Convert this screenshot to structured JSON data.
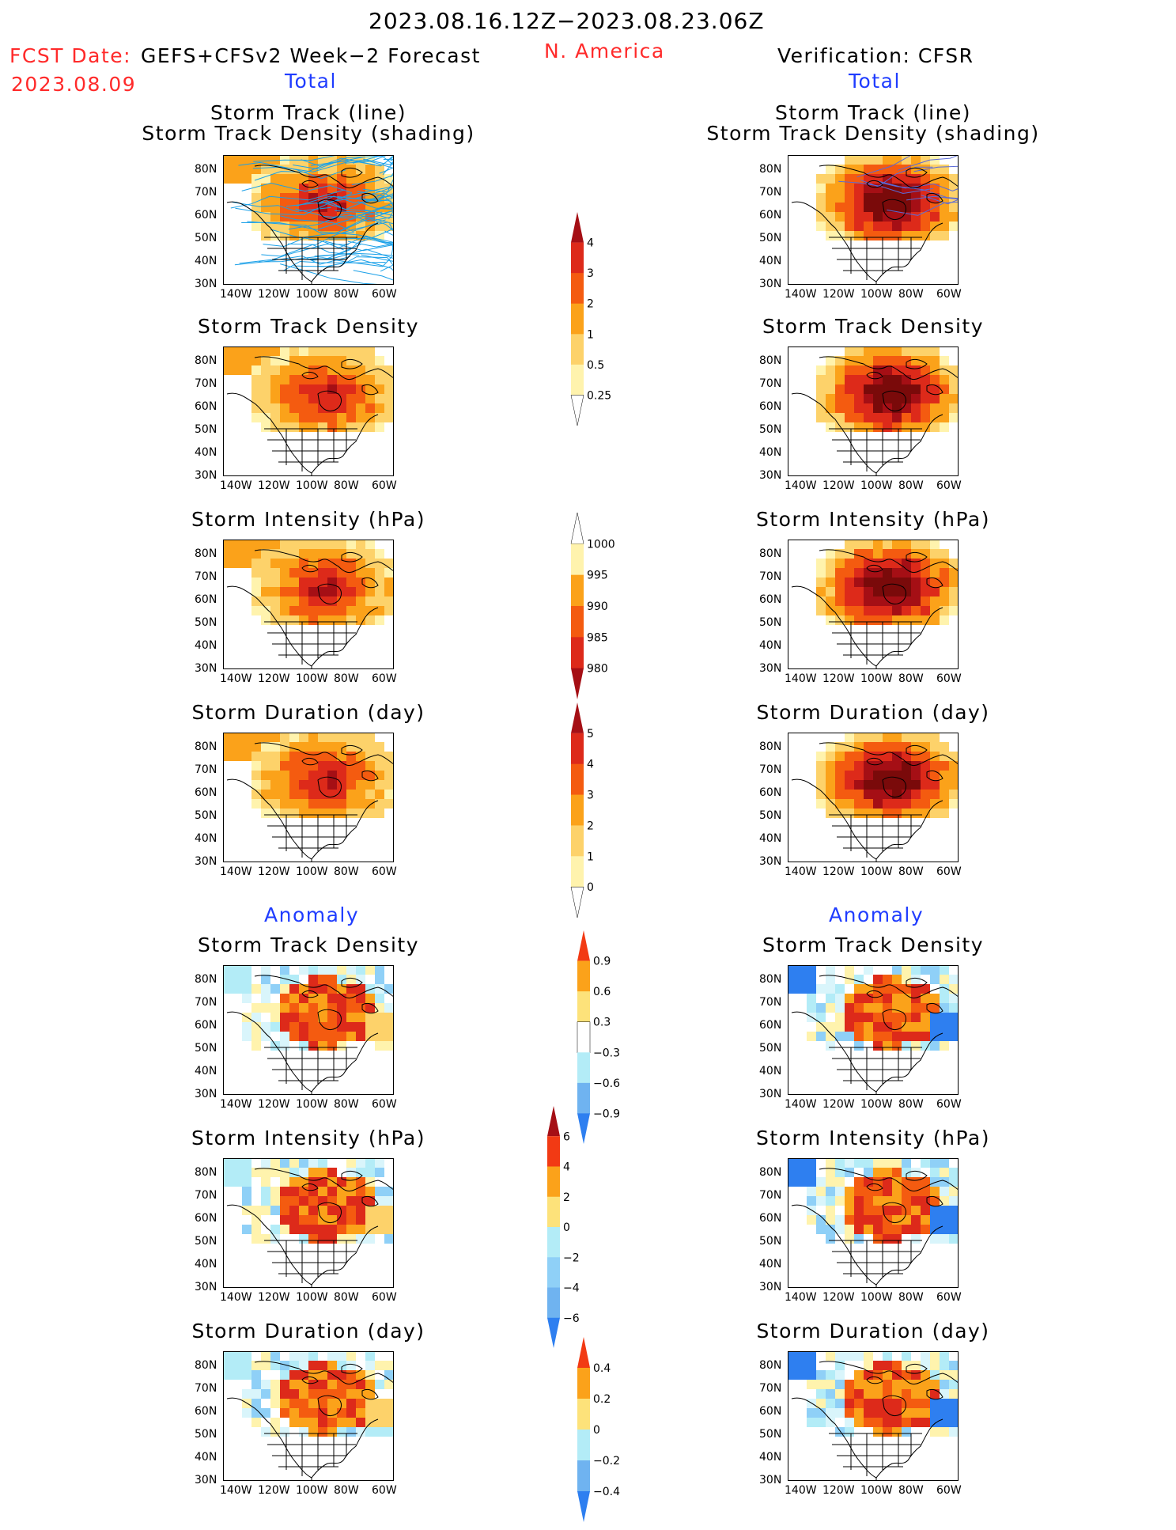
{
  "header": {
    "date_range": "2023.08.16.12Z−2023.08.23.06Z",
    "fcst_date_label": "FCST Date:",
    "fcst_date": "2023.08.09",
    "forecast_name": "GEFS+CFSv2 Week−2 Forecast",
    "region": "N. America",
    "verification": "Verification: CFSR",
    "left_total": "Total",
    "right_total": "Total",
    "left_anomaly": "Anomaly",
    "right_anomaly": "Anomaly"
  },
  "axes": {
    "lat_ticks": [
      "80N",
      "70N",
      "60N",
      "50N",
      "40N",
      "30N"
    ],
    "lon_ticks": [
      "140W",
      "120W",
      "100W",
      "80W",
      "60W"
    ]
  },
  "panels": {
    "left": [
      {
        "title1": "Storm Track (line)",
        "title2": "Storm Track Density (shading)"
      },
      {
        "title1": "Storm Track Density"
      },
      {
        "title1": "Storm Intensity (hPa)"
      },
      {
        "title1": "Storm Duration (day)"
      },
      {
        "title1": "Storm Track Density"
      },
      {
        "title1": "Storm Intensity (hPa)"
      },
      {
        "title1": "Storm Duration (day)"
      }
    ],
    "right": [
      {
        "title1": "Storm Track (line)",
        "title2": "Storm Track Density (shading)"
      },
      {
        "title1": "Storm Track Density"
      },
      {
        "title1": "Storm Intensity (hPa)"
      },
      {
        "title1": "Storm Duration (day)"
      },
      {
        "title1": "Storm Track Density"
      },
      {
        "title1": "Storm Intensity (hPa)"
      },
      {
        "title1": "Storm Duration (day)"
      }
    ]
  },
  "colorbars": [
    {
      "id": "density",
      "labels": [
        "4",
        "3",
        "2",
        "1",
        "0.5",
        "0.25"
      ],
      "colors": [
        "#a50f15",
        "#dd2a1a",
        "#f45b10",
        "#fba21a",
        "#fdd26a",
        "#fff3ad",
        "#ffffff"
      ]
    },
    {
      "id": "intensity",
      "labels": [
        "1000",
        "995",
        "990",
        "985",
        "980"
      ],
      "colors": [
        "#ffffff",
        "#fff3ad",
        "#fba21a",
        "#f45b10",
        "#dd2a1a",
        "#a50f15"
      ]
    },
    {
      "id": "duration",
      "labels": [
        "5",
        "4",
        "3",
        "2",
        "1",
        "0"
      ],
      "colors": [
        "#a50f15",
        "#dd2a1a",
        "#f45b10",
        "#fba21a",
        "#fdd26a",
        "#fff3ad",
        "#ffffff"
      ]
    },
    {
      "id": "anom-density",
      "labels": [
        "0.9",
        "0.6",
        "0.3",
        "−0.3",
        "−0.6",
        "−0.9"
      ],
      "colors": [
        "#f23a14",
        "#fba21a",
        "#fde27a",
        "#ffffff",
        "#b3ecf7",
        "#6fb3f0",
        "#2e7ff0"
      ]
    },
    {
      "id": "anom-intensity",
      "labels": [
        "6",
        "4",
        "2",
        "0",
        "−2",
        "−4",
        "−6"
      ],
      "colors": [
        "#a50f15",
        "#f23a14",
        "#fba21a",
        "#fde27a",
        "#b3ecf7",
        "#8fd0f7",
        "#6fb3f0",
        "#2e7ff0"
      ]
    },
    {
      "id": "anom-duration",
      "labels": [
        "0.4",
        "0.2",
        "0",
        "−0.2",
        "−0.4"
      ],
      "colors": [
        "#f23a14",
        "#fba21a",
        "#fde27a",
        "#b3ecf7",
        "#6fb3f0",
        "#2e7ff0"
      ]
    }
  ]
}
